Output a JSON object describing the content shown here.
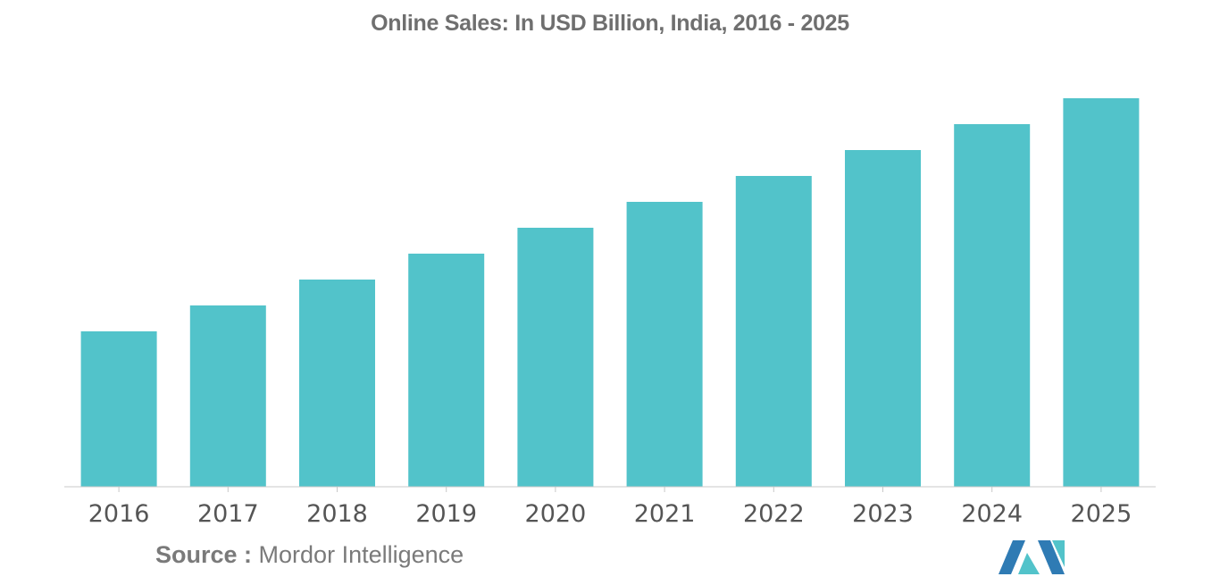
{
  "chart_data": {
    "type": "bar",
    "title": "Online Sales: In USD Billion, India, 2016 - 2025",
    "xlabel": "",
    "ylabel": "",
    "categories": [
      "2016",
      "2017",
      "2018",
      "2019",
      "2020",
      "2021",
      "2022",
      "2023",
      "2024",
      "2025"
    ],
    "values": [
      6,
      7,
      8,
      9,
      10,
      11,
      12,
      13,
      14,
      15
    ],
    "ylim": [
      0,
      15
    ],
    "grid": false,
    "legend": "none",
    "bar_color": "#52c3ca",
    "axis_color": "#c8c8c8"
  },
  "source": {
    "key": "Source :",
    "value": "Mordor Intelligence"
  },
  "logo": {
    "icon": "mordor-intelligence-logo-icon",
    "colors": [
      "#2f7bb4",
      "#52c3ca"
    ]
  }
}
